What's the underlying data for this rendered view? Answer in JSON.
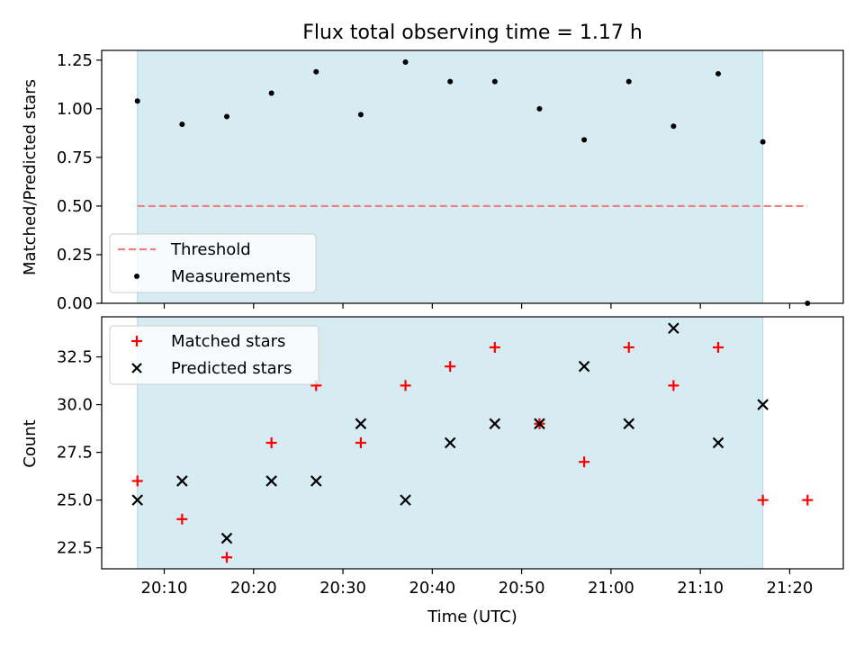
{
  "chart_data": [
    {
      "type": "scatter",
      "title": "Flux total observing time = 1.17 h",
      "xlabel": "",
      "ylabel": "Matched/Predicted stars",
      "ylim": [
        0,
        1.3
      ],
      "yticks": [
        0.0,
        0.25,
        0.5,
        0.75,
        1.0,
        1.25
      ],
      "ytick_labels": [
        "0.00",
        "0.25",
        "0.50",
        "0.75",
        "1.00",
        "1.25"
      ],
      "observing_window": [
        "20:07",
        "21:17"
      ],
      "threshold": {
        "name": "Threshold",
        "value": 0.5,
        "x_range": [
          "20:07",
          "21:22"
        ],
        "color": "#f08080"
      },
      "series": [
        {
          "name": "Measurements",
          "color": "#000000",
          "x": [
            "20:07",
            "20:12",
            "20:17",
            "20:22",
            "20:27",
            "20:32",
            "20:37",
            "20:42",
            "20:47",
            "20:52",
            "20:57",
            "21:02",
            "21:07",
            "21:12",
            "21:17",
            "21:22"
          ],
          "values": [
            1.04,
            0.92,
            0.96,
            1.08,
            1.19,
            0.97,
            1.24,
            1.14,
            1.14,
            1.0,
            0.84,
            1.14,
            0.91,
            1.18,
            0.83,
            0.0
          ]
        }
      ],
      "legend": {
        "position": "lower-left",
        "entries": [
          "Threshold",
          "Measurements"
        ]
      }
    },
    {
      "type": "scatter",
      "xlabel": "Time (UTC)",
      "ylabel": "Count",
      "ylim": [
        21.4,
        34.6
      ],
      "yticks": [
        22.5,
        25.0,
        27.5,
        30.0,
        32.5
      ],
      "ytick_labels": [
        "22.5",
        "25.0",
        "27.5",
        "30.0",
        "32.5"
      ],
      "xlim": [
        "20:03",
        "21:26"
      ],
      "xticks": [
        "20:10",
        "20:20",
        "20:30",
        "20:40",
        "20:50",
        "21:00",
        "21:10",
        "21:20"
      ],
      "observing_window": [
        "20:07",
        "21:17"
      ],
      "series": [
        {
          "name": "Matched stars",
          "marker": "+",
          "color": "#ff0000",
          "x": [
            "20:07",
            "20:12",
            "20:17",
            "20:22",
            "20:27",
            "20:32",
            "20:37",
            "20:42",
            "20:47",
            "20:52",
            "20:57",
            "21:02",
            "21:07",
            "21:12",
            "21:17",
            "21:22"
          ],
          "values": [
            26,
            24,
            22,
            28,
            31,
            28,
            31,
            32,
            33,
            29,
            27,
            33,
            31,
            33,
            25,
            25
          ]
        },
        {
          "name": "Predicted stars",
          "marker": "x",
          "color": "#000000",
          "x": [
            "20:07",
            "20:12",
            "20:17",
            "20:22",
            "20:27",
            "20:32",
            "20:37",
            "20:42",
            "20:47",
            "20:52",
            "20:57",
            "21:02",
            "21:07",
            "21:12",
            "21:17"
          ],
          "values": [
            25,
            26,
            23,
            26,
            26,
            29,
            25,
            28,
            29,
            29,
            32,
            29,
            34,
            28,
            30
          ]
        }
      ],
      "legend": {
        "position": "upper-left",
        "entries": [
          "Matched stars",
          "Predicted stars"
        ]
      }
    }
  ],
  "colors": {
    "window_fill": "#add8e6",
    "axis": "#000000"
  }
}
